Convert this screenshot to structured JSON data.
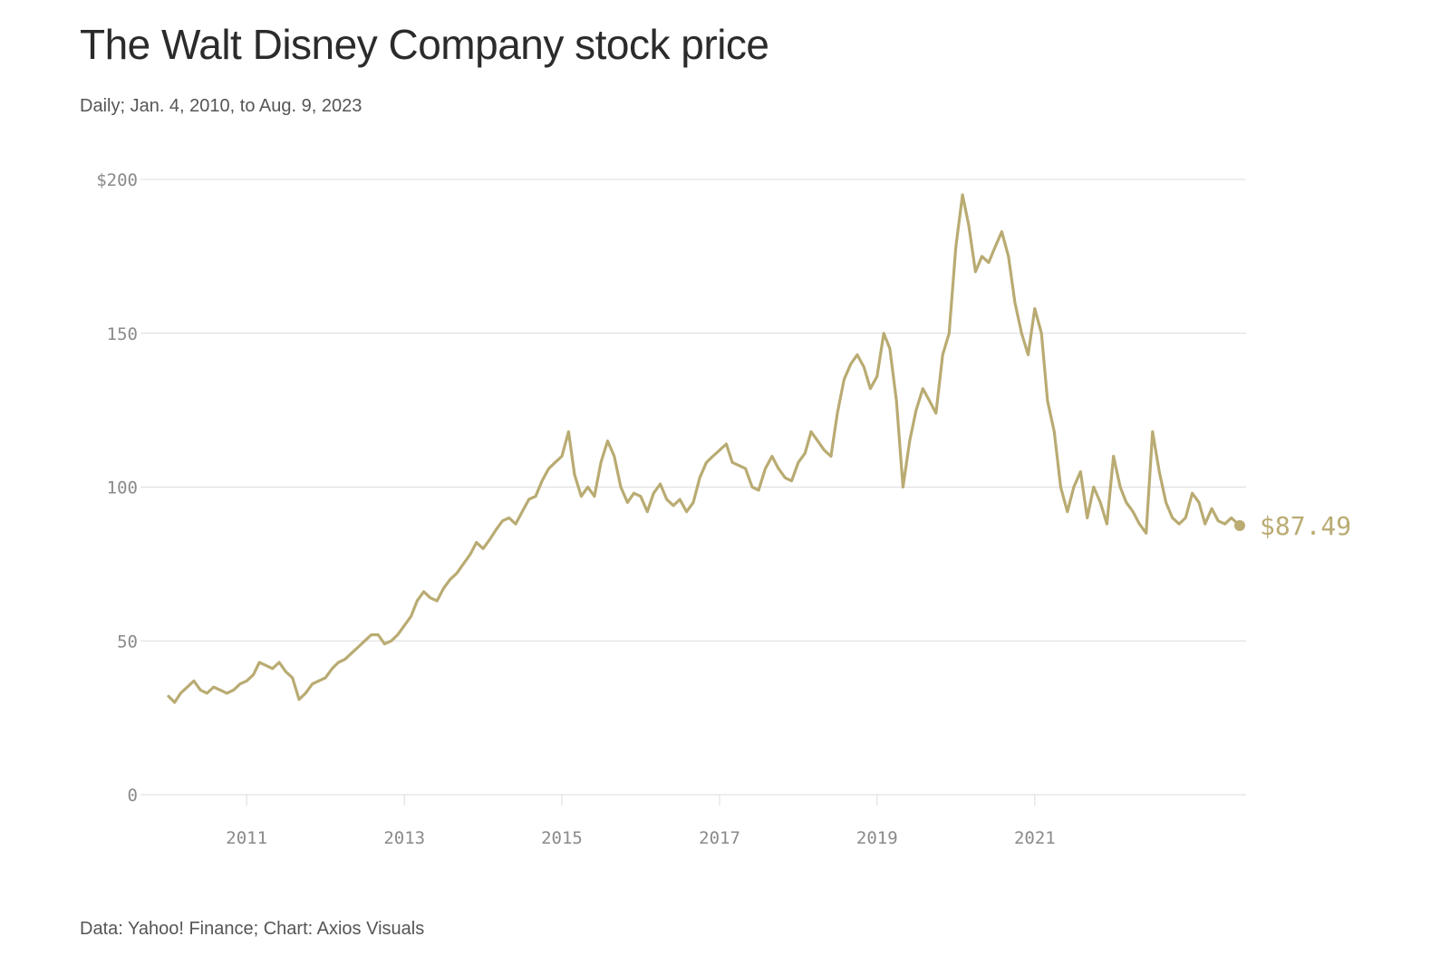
{
  "header": {
    "title": "The Walt Disney Company stock price",
    "subtitle": "Daily; Jan. 4, 2010, to Aug. 9, 2023"
  },
  "footer": {
    "source": "Data: Yahoo! Finance; Chart: Axios Visuals"
  },
  "colors": {
    "line": "#b9ab72",
    "grid": "#dcdcdc",
    "tick": "#8a8a8a"
  },
  "chart_data": {
    "type": "line",
    "title": "The Walt Disney Company stock price",
    "subtitle": "Daily; Jan. 4, 2010, to Aug. 9, 2023",
    "xlabel": "",
    "ylabel": "",
    "xlim": [
      "2010-01-04",
      "2023-08-09"
    ],
    "ylim": [
      0,
      200
    ],
    "y_ticks": [
      0,
      50,
      100,
      150,
      200
    ],
    "y_tick_labels": [
      "0",
      "50",
      "100",
      "150",
      "$200"
    ],
    "x_ticks": [
      "2011-01-01",
      "2013-01-01",
      "2015-01-01",
      "2017-01-01",
      "2019-01-01",
      "2021-01-01"
    ],
    "x_tick_labels": [
      "2011",
      "2013",
      "2015",
      "2017",
      "2019",
      "2021"
    ],
    "grid": "horizontal",
    "end_label": "$87.49",
    "series": [
      {
        "x": [
          "2010-01-04",
          "2010-02-01",
          "2010-03-01",
          "2010-04-01",
          "2010-05-01",
          "2010-06-01",
          "2010-07-01",
          "2010-08-01",
          "2010-09-01",
          "2010-10-01",
          "2010-11-01",
          "2010-12-01",
          "2011-01-01",
          "2011-02-01",
          "2011-03-01",
          "2011-04-01",
          "2011-05-01",
          "2011-06-01",
          "2011-07-01",
          "2011-08-01",
          "2011-09-01",
          "2011-10-01",
          "2011-11-01",
          "2011-12-01",
          "2012-01-01",
          "2012-02-01",
          "2012-03-01",
          "2012-04-01",
          "2012-05-01",
          "2012-06-01",
          "2012-07-01",
          "2012-08-01",
          "2012-09-01",
          "2012-10-01",
          "2012-11-01",
          "2012-12-01",
          "2013-01-01",
          "2013-02-01",
          "2013-03-01",
          "2013-04-01",
          "2013-05-01",
          "2013-06-01",
          "2013-07-01",
          "2013-08-01",
          "2013-09-01",
          "2013-10-01",
          "2013-11-01",
          "2013-12-01",
          "2014-01-01",
          "2014-02-01",
          "2014-03-01",
          "2014-04-01",
          "2014-05-01",
          "2014-06-01",
          "2014-07-01",
          "2014-08-01",
          "2014-09-01",
          "2014-10-01",
          "2014-11-01",
          "2014-12-01",
          "2015-01-01",
          "2015-02-01",
          "2015-03-01",
          "2015-04-01",
          "2015-05-01",
          "2015-06-01",
          "2015-07-01",
          "2015-08-01",
          "2015-09-01",
          "2015-10-01",
          "2015-11-01",
          "2015-12-01",
          "2016-01-01",
          "2016-02-01",
          "2016-03-01",
          "2016-04-01",
          "2016-05-01",
          "2016-06-01",
          "2016-07-01",
          "2016-08-01",
          "2016-09-01",
          "2016-10-01",
          "2016-11-01",
          "2016-12-01",
          "2017-01-01",
          "2017-02-01",
          "2017-03-01",
          "2017-04-01",
          "2017-05-01",
          "2017-06-01",
          "2017-07-01",
          "2017-08-01",
          "2017-09-01",
          "2017-10-01",
          "2017-11-01",
          "2017-12-01",
          "2018-01-01",
          "2018-02-01",
          "2018-03-01",
          "2018-04-01",
          "2018-05-01",
          "2018-06-01",
          "2018-07-01",
          "2018-08-01",
          "2018-09-01",
          "2018-10-01",
          "2018-11-01",
          "2018-12-01",
          "2019-01-01",
          "2019-02-01",
          "2019-03-01",
          "2019-04-01",
          "2019-05-01",
          "2019-06-01",
          "2019-07-01",
          "2019-08-01",
          "2019-09-01",
          "2019-10-01",
          "2019-11-01",
          "2019-12-01",
          "2020-01-01",
          "2020-02-01",
          "2020-03-01",
          "2020-04-01",
          "2020-05-01",
          "2020-06-01",
          "2020-07-01",
          "2020-08-01",
          "2020-09-01",
          "2020-10-01",
          "2020-11-01",
          "2020-12-01",
          "2021-01-01",
          "2021-02-01",
          "2021-03-01",
          "2021-04-01",
          "2021-05-01",
          "2021-06-01",
          "2021-07-01",
          "2021-08-01",
          "2021-09-01",
          "2021-10-01",
          "2021-11-01",
          "2021-12-01",
          "2022-01-01",
          "2022-02-01",
          "2022-03-01",
          "2022-04-01",
          "2022-05-01",
          "2022-06-01",
          "2022-07-01",
          "2022-08-01",
          "2022-09-01",
          "2022-10-01",
          "2022-11-01",
          "2022-12-01",
          "2023-01-01",
          "2023-02-01",
          "2023-03-01",
          "2023-04-01",
          "2023-05-01",
          "2023-06-01",
          "2023-07-01",
          "2023-08-09"
        ],
        "y": [
          32,
          30,
          33,
          35,
          37,
          34,
          33,
          35,
          34,
          33,
          34,
          36,
          37,
          39,
          43,
          42,
          41,
          43,
          40,
          38,
          31,
          33,
          36,
          37,
          38,
          41,
          43,
          44,
          46,
          48,
          50,
          52,
          52,
          49,
          50,
          52,
          55,
          58,
          63,
          66,
          64,
          63,
          67,
          70,
          72,
          75,
          78,
          82,
          80,
          83,
          86,
          89,
          90,
          88,
          92,
          96,
          97,
          102,
          106,
          108,
          110,
          118,
          104,
          97,
          100,
          97,
          108,
          115,
          110,
          100,
          95,
          98,
          97,
          92,
          98,
          101,
          96,
          94,
          96,
          92,
          95,
          103,
          108,
          110,
          112,
          114,
          108,
          107,
          106,
          100,
          99,
          106,
          110,
          106,
          103,
          102,
          108,
          111,
          118,
          115,
          112,
          110,
          124,
          135,
          140,
          143,
          139,
          132,
          136,
          150,
          145,
          128,
          100,
          115,
          125,
          132,
          128,
          124,
          143,
          150,
          178,
          195,
          185,
          170,
          175,
          173,
          178,
          183,
          175,
          160,
          150,
          143,
          158,
          150,
          128,
          118,
          100,
          92,
          100,
          105,
          90,
          100,
          95,
          88,
          110,
          100,
          95,
          92,
          88,
          85,
          118,
          105,
          95,
          90,
          88,
          90,
          98,
          95,
          88,
          93,
          89,
          88,
          90,
          87.49
        ]
      }
    ]
  }
}
